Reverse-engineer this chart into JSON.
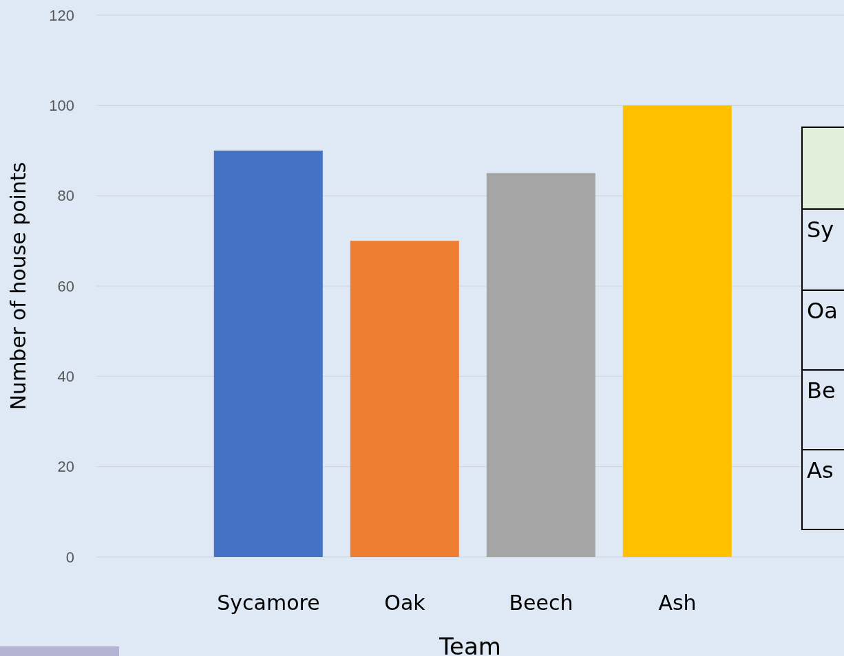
{
  "chart_data": {
    "type": "bar",
    "categories": [
      "Sycamore",
      "Oak",
      "Beech",
      "Ash"
    ],
    "values": [
      90,
      70,
      85,
      100
    ],
    "colors": [
      "#4472c4",
      "#ed7d31",
      "#a5a5a5",
      "#ffc000"
    ],
    "ylim": [
      0,
      120
    ],
    "yticks": [
      0,
      20,
      40,
      60,
      80,
      100,
      120
    ],
    "grid": "y",
    "xlabel": "Team",
    "ylabel": "Number of house points",
    "annotations": [
      "Sy",
      "Oa",
      "Be",
      "As"
    ]
  }
}
